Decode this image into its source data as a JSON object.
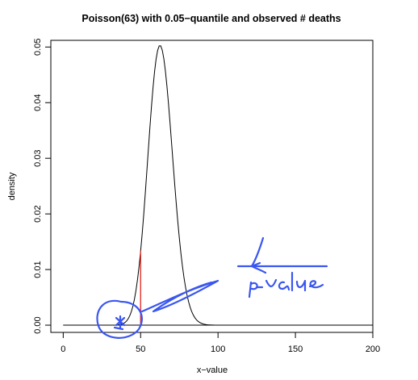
{
  "chart_data": {
    "type": "line",
    "title": "Poisson(63) with 0.05−quantile and observed # deaths",
    "xlabel": "x−value",
    "ylabel": "density",
    "xlim": [
      -8,
      200
    ],
    "ylim": [
      -0.0013,
      0.0512
    ],
    "xticks": [
      0,
      50,
      100,
      150,
      200
    ],
    "xtick_labels": [
      "0",
      "50",
      "100",
      "150",
      "200"
    ],
    "yticks": [
      0.0,
      0.01,
      0.02,
      0.03,
      0.04,
      0.05
    ],
    "ytick_labels": [
      "0.00",
      "0.01",
      "0.02",
      "0.03",
      "0.04",
      "0.05"
    ],
    "grid": false,
    "series": [
      {
        "distribution": "poisson",
        "lambda": 63,
        "x_range": [
          0,
          200
        ],
        "color": "#000000"
      }
    ],
    "baseline": {
      "y": 0,
      "color": "#000000"
    },
    "vertical_segments": [
      {
        "x": 50,
        "y0": 0,
        "y1": 0.0134,
        "color": "#e8302a"
      }
    ],
    "annotations": [
      {
        "kind": "handwritten",
        "text": "p-value",
        "color": "#3a56f0"
      },
      {
        "kind": "handwritten-mark",
        "description": "circle around observed value with asterisk",
        "x": 38,
        "y": 0,
        "color": "#3a56f0"
      }
    ]
  }
}
